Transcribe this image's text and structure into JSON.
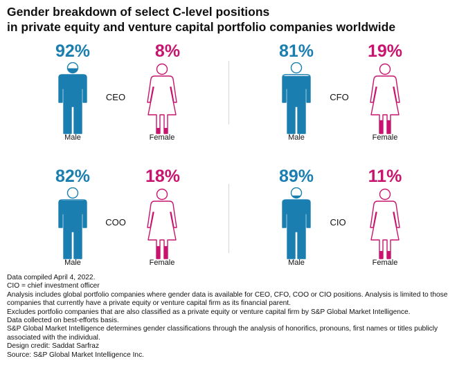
{
  "title_lines": [
    "Gender breakdown of select C-level positions",
    "in private equity and venture capital portfolio companies worldwide"
  ],
  "colors": {
    "male": "#1a7fb0",
    "female": "#c8146e",
    "outline_male": "#1a7fb0",
    "outline_female": "#c8146e"
  },
  "labels": {
    "male": "Male",
    "female": "Female"
  },
  "chart_data": {
    "type": "pictogram",
    "title": "Gender breakdown of select C-level positions in private equity and venture capital portfolio companies worldwide",
    "categories": [
      "CEO",
      "CFO",
      "COO",
      "CIO"
    ],
    "series": [
      {
        "name": "Male",
        "values": [
          92,
          81,
          82,
          89
        ],
        "display": [
          "92%",
          "81%",
          "82%",
          "89%"
        ]
      },
      {
        "name": "Female",
        "values": [
          8,
          19,
          18,
          11
        ],
        "display": [
          "8%",
          "19%",
          "18%",
          "11%"
        ]
      }
    ],
    "unit": "%"
  },
  "notes": [
    "Data compiled April 4, 2022.",
    "CIO = chief investment officer",
    "Analysis includes global portfolio companies where gender data is available for CEO, CFO, COO or CIO positions. Analysis is limited to those companies that currently have a private equity or venture capital firm as its financial parent.",
    "Excludes portfolio companies that are also classified as a private equity or venture capital firm by S&P Global Market Intelligence.",
    "Data collected on best-efforts basis.",
    "S&P Global Market Intelligence determines gender classifications through the analysis of honorifics, pronouns, first names or titles publicly associated with the individual.",
    "Design credit: Saddat Sarfraz",
    "Source: S&P Global Market Intelligence Inc."
  ]
}
